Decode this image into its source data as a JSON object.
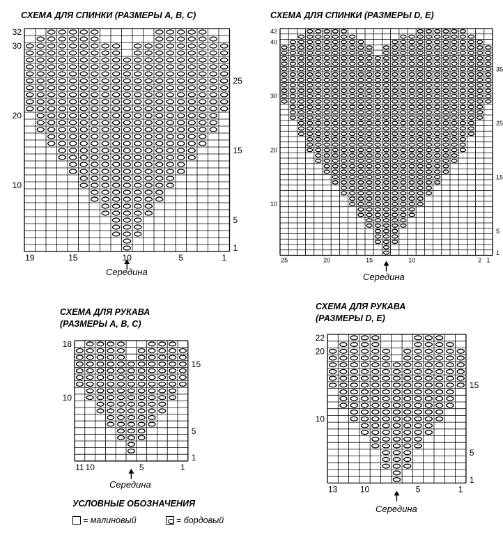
{
  "diagrams": {
    "back_abc": {
      "title": "СХЕМА ДЛЯ СПИНКИ (РАЗМЕРЫ A, B, C)",
      "cols": 19,
      "rows": 32,
      "left_row_labels": [
        "32",
        "30",
        "20",
        "10"
      ],
      "right_row_labels": [
        "25",
        "15",
        "5",
        "1"
      ],
      "col_labels": [
        "19",
        "15",
        "10",
        "5",
        "1"
      ],
      "center_label": "Середина",
      "rows_bottom_up": [
        "0000000001000000000",
        "0000000001000000000",
        "0000000011100000000",
        "0000000011100000000",
        "0000000011100000000",
        "0000000111110000000",
        "0000000111110000000",
        "0000001111111000000",
        "0000001111111000000",
        "0000011111111100000",
        "0000011111111100000",
        "0000111111111110000",
        "0000111111111110000",
        "0001111111111111000",
        "0001111111111111000",
        "0011111111111111100",
        "0011111111111111100",
        "0111111111111111110",
        "0111111111111111110",
        "0111111111111111110",
        "1111111111111111111",
        "1111111111111111111",
        "1111111111111111111",
        "1111111111111111111",
        "1111111111111111111",
        "1111111111111111111",
        "1111111111111111111",
        "1111111111111111111",
        "1111111110111111111",
        "1111111110111111111",
        "0111111000001111110",
        "0011111000001111100"
      ]
    },
    "back_de": {
      "title": "СХЕМА ДЛЯ СПИНКИ (РАЗМЕРЫ D, E)",
      "cols": 25,
      "rows": 42,
      "left_row_labels": [
        "42",
        "40",
        "30",
        "20",
        "10"
      ],
      "right_row_labels": [
        "35",
        "25",
        "15",
        "5",
        "1"
      ],
      "col_labels": [
        "25",
        "20",
        "15",
        "10",
        "2",
        "1"
      ],
      "center_label": "Середина",
      "rows_bottom_up": [
        "0000000000001000000000000",
        "0000000000001000000000000",
        "0000000000011100000000000",
        "0000000000011100000000000",
        "0000000000011100000000000",
        "0000000000111110000000000",
        "0000000000111110000000000",
        "0000000001111111000000000",
        "0000000001111111000000000",
        "0000000011111111100000000",
        "0000000011111111100000000",
        "0000000111111111110000000",
        "0000000111111111110000000",
        "0000001111111111111000000",
        "0000001111111111111000000",
        "0000011111111111111100000",
        "0000011111111111111100000",
        "0000111111111111111110000",
        "0000111111111111111110000",
        "0001111111111111111111000",
        "0001111111111111111111000",
        "0001111111111111111111000",
        "0011111111111111111111100",
        "0011111111111111111111100",
        "0011111111111111111111100",
        "0111111111111111111111110",
        "0111111111111111111111110",
        "0111111111111111111111110",
        "1111111111111111111111111",
        "1111111111111111111111111",
        "1111111111111111111111111",
        "1111111111111111111111111",
        "1111111111111111111111111",
        "1111111111111111111111111",
        "1111111111111111111111111",
        "1111111111111111111111111",
        "1111111111111111111111111",
        "1111111111101111111111111",
        "1111111111101111111111111",
        "0111111111000111111111110",
        "0011111110000011111111100",
        "0001111100000000111111000"
      ]
    },
    "sleeve_abc": {
      "title": "СХЕМА ДЛЯ РУКАВА",
      "subtitle": "(РАЗМЕРЫ A, B, C)",
      "cols": 11,
      "rows": 18,
      "left_row_labels": [
        "18",
        "10"
      ],
      "right_row_labels": [
        "15",
        "5",
        "1"
      ],
      "col_labels": [
        "11",
        "10",
        "5",
        "1"
      ],
      "center_label": "Середина",
      "rows_bottom_up": [
        "00000000000",
        "00000100000",
        "00000100000",
        "00001110000",
        "00001110000",
        "00011111000",
        "00011111000",
        "00111111100",
        "00111111100",
        "01111111110",
        "01111111110",
        "11111111111",
        "11111111111",
        "11111111111",
        "11111111111",
        "11111011111",
        "11111011111",
        "01111001110"
      ]
    },
    "sleeve_de": {
      "title": "СХЕМА ДЛЯ РУКАВА",
      "subtitle": "(РАЗМЕРЫ D, E)",
      "cols": 13,
      "rows": 22,
      "left_row_labels": [
        "22",
        "20",
        "10"
      ],
      "right_row_labels": [
        "15",
        "5",
        "1"
      ],
      "col_labels": [
        "13",
        "10",
        "5",
        "1"
      ],
      "center_label": "Середина",
      "rows_bottom_up": [
        "0000001000000",
        "0000001000000",
        "0000011100000",
        "0000011100000",
        "0000011100000",
        "0000111110000",
        "0000111110000",
        "0001111111000",
        "0001111111000",
        "0011111111100",
        "0011111111100",
        "0111111111110",
        "0111111111110",
        "0111111111110",
        "1111111111111",
        "1111111111111",
        "1111111111111",
        "1111111111111",
        "1111110111111",
        "1111110111111",
        "0111100011110",
        "0011100011100"
      ]
    }
  },
  "legend": {
    "title": "УСЛОВНЫЕ ОБОЗНАЧЕНИЯ",
    "items": [
      {
        "symbol": "empty-cell",
        "label": "= малиновый"
      },
      {
        "symbol": "oval-cell",
        "label": "= бордовый"
      }
    ]
  },
  "colors": {
    "ink": "#000000",
    "background": "#ffffff"
  }
}
